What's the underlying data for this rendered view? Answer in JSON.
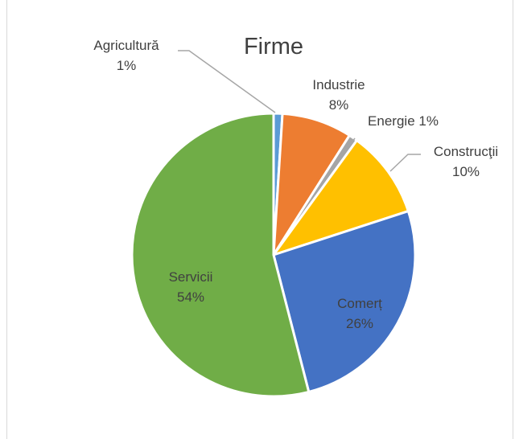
{
  "chart_data": {
    "type": "pie",
    "title": "Firme",
    "slices": [
      {
        "name": "Agricultură",
        "label": "Agricultură",
        "pct_label": "1%",
        "value": 1,
        "color": "#5b9bd5"
      },
      {
        "name": "Industrie",
        "label": "Industrie",
        "pct_label": "8%",
        "value": 8,
        "color": "#ed7d31"
      },
      {
        "name": "Energie",
        "label": "Energie 1%",
        "pct_label": "",
        "value": 1,
        "color": "#a5a5a5"
      },
      {
        "name": "Construcţii",
        "label": "Construcţii",
        "pct_label": "10%",
        "value": 10,
        "color": "#ffc000"
      },
      {
        "name": "Comerț",
        "label": "Comerț",
        "pct_label": "26%",
        "value": 26,
        "color": "#4472c4"
      },
      {
        "name": "Servicii",
        "label": "Servicii",
        "pct_label": "54%",
        "value": 54,
        "color": "#70ad47"
      }
    ],
    "legend": "none",
    "grid": false
  }
}
